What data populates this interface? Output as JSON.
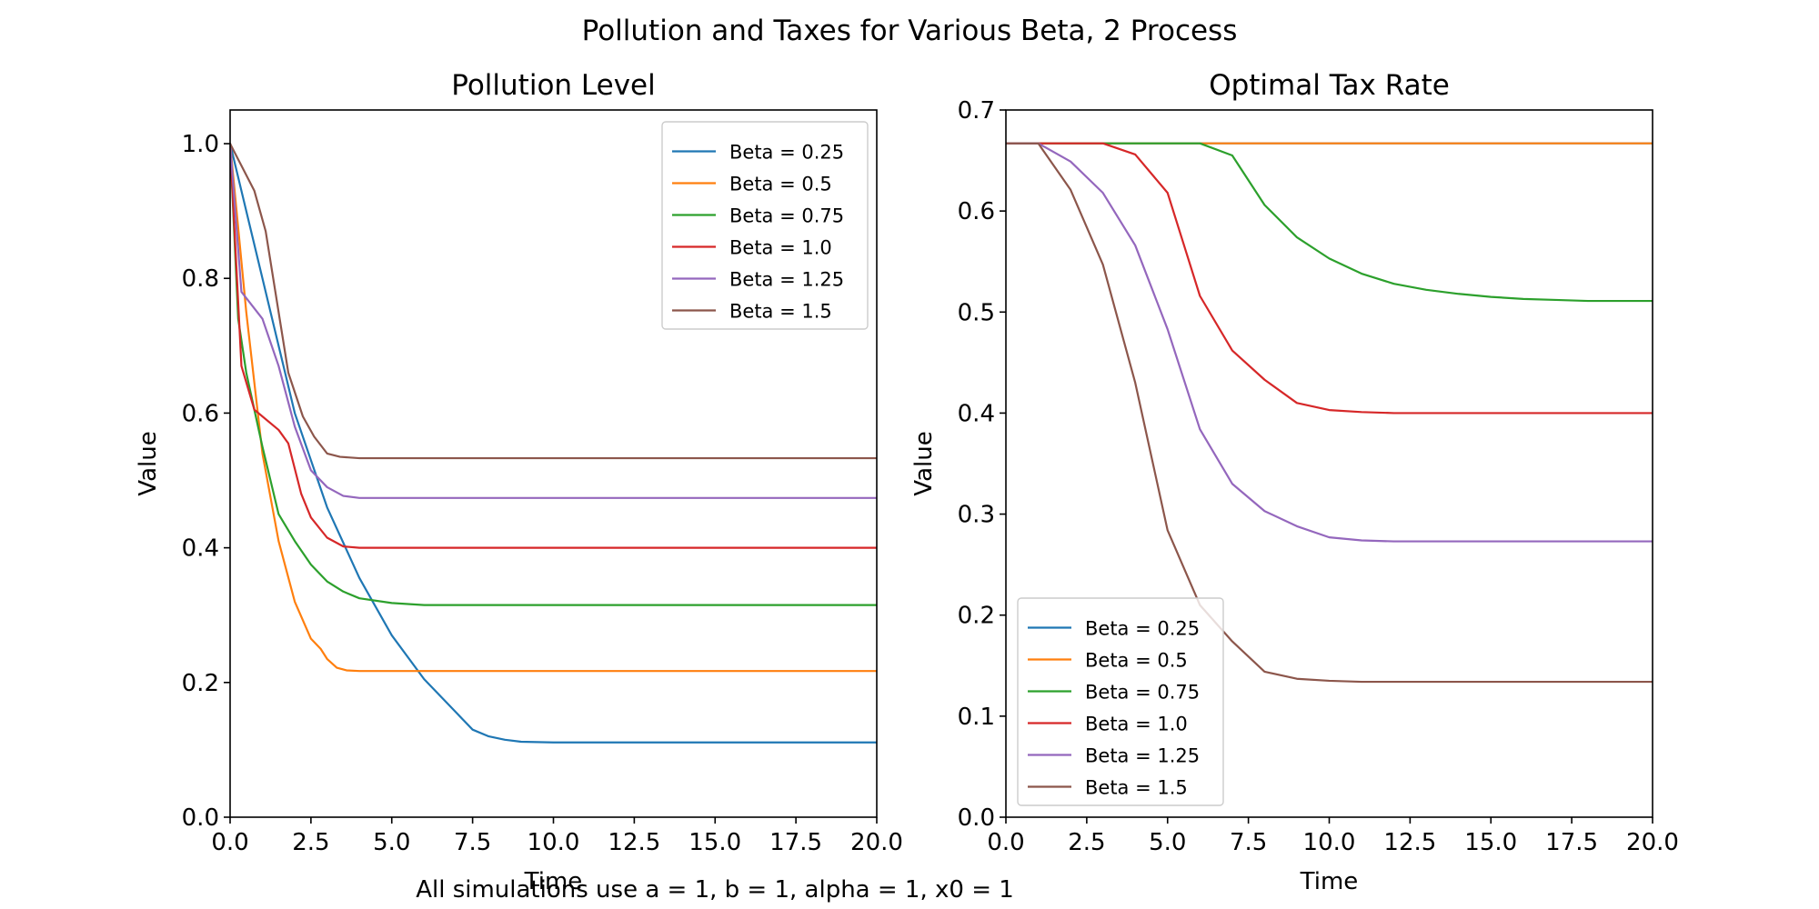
{
  "suptitle": "Pollution and Taxes for Various Beta, 2 Process",
  "footnote": "All simulations use a = 1, b = 1, alpha = 1, x0 = 1",
  "chart_data": [
    {
      "type": "line",
      "title": "Pollution Level",
      "xlabel": "Time",
      "ylabel": "Value",
      "xlim": [
        0,
        20
      ],
      "ylim": [
        0,
        1.05
      ],
      "xticks": [
        0,
        2.5,
        5,
        7.5,
        10,
        12.5,
        15,
        17.5,
        20
      ],
      "xtick_labels": [
        "0.0",
        "2.5",
        "5.0",
        "7.5",
        "10.0",
        "12.5",
        "15.0",
        "17.5",
        "20.0"
      ],
      "yticks": [
        0,
        0.2,
        0.4,
        0.6,
        0.8,
        1.0
      ],
      "ytick_labels": [
        "0.0",
        "0.2",
        "0.4",
        "0.6",
        "0.8",
        "1.0"
      ],
      "grid": false,
      "legend": "upper right",
      "series": [
        {
          "name": "Beta = 0.25",
          "color": "#1f77b4",
          "x": [
            0,
            1,
            2,
            3,
            4,
            5,
            6,
            7,
            7.5,
            8,
            8.5,
            9,
            10,
            12,
            15,
            20
          ],
          "y": [
            1.0,
            0.8,
            0.6,
            0.46,
            0.355,
            0.27,
            0.205,
            0.155,
            0.13,
            0.12,
            0.115,
            0.112,
            0.111,
            0.111,
            0.111,
            0.111
          ]
        },
        {
          "name": "Beta = 0.5",
          "color": "#ff7f0e",
          "x": [
            0,
            0.5,
            1,
            1.5,
            2,
            2.5,
            2.8,
            3,
            3.3,
            3.6,
            4,
            5,
            20
          ],
          "y": [
            1.0,
            0.75,
            0.54,
            0.41,
            0.32,
            0.265,
            0.25,
            0.235,
            0.222,
            0.218,
            0.217,
            0.217,
            0.217
          ]
        },
        {
          "name": "Beta = 0.75",
          "color": "#2ca02c",
          "x": [
            0,
            0.25,
            0.5,
            1,
            1.5,
            2,
            2.5,
            3,
            3.5,
            4,
            5,
            6,
            8,
            20
          ],
          "y": [
            1.0,
            0.74,
            0.66,
            0.55,
            0.45,
            0.41,
            0.375,
            0.35,
            0.335,
            0.325,
            0.318,
            0.315,
            0.315,
            0.315
          ]
        },
        {
          "name": "Beta = 1.0",
          "color": "#d62728",
          "x": [
            0,
            0.35,
            0.75,
            1.5,
            1.8,
            2.2,
            2.5,
            3,
            3.5,
            4,
            5,
            20
          ],
          "y": [
            1.0,
            0.67,
            0.605,
            0.575,
            0.555,
            0.48,
            0.445,
            0.415,
            0.402,
            0.4,
            0.4,
            0.4
          ]
        },
        {
          "name": "Beta = 1.25",
          "color": "#9467bd",
          "x": [
            0,
            0.35,
            1,
            1.5,
            2,
            2.5,
            3,
            3.5,
            4,
            5,
            20
          ],
          "y": [
            1.0,
            0.78,
            0.74,
            0.67,
            0.58,
            0.515,
            0.49,
            0.477,
            0.474,
            0.474,
            0.474
          ]
        },
        {
          "name": "Beta = 1.5",
          "color": "#8c564b",
          "x": [
            0,
            0.75,
            1.1,
            1.4,
            1.8,
            2.25,
            2.6,
            3,
            3.4,
            4,
            5,
            20
          ],
          "y": [
            1.0,
            0.93,
            0.87,
            0.78,
            0.66,
            0.595,
            0.565,
            0.54,
            0.535,
            0.533,
            0.533,
            0.533
          ]
        }
      ]
    },
    {
      "type": "line",
      "title": "Optimal Tax Rate",
      "xlabel": "Time",
      "ylabel": "Value",
      "xlim": [
        0,
        20
      ],
      "ylim": [
        0,
        0.7
      ],
      "xticks": [
        0,
        2.5,
        5,
        7.5,
        10,
        12.5,
        15,
        17.5,
        20
      ],
      "xtick_labels": [
        "0.0",
        "2.5",
        "5.0",
        "7.5",
        "10.0",
        "12.5",
        "15.0",
        "17.5",
        "20.0"
      ],
      "yticks": [
        0,
        0.1,
        0.2,
        0.3,
        0.4,
        0.5,
        0.6,
        0.7
      ],
      "ytick_labels": [
        "0.0",
        "0.1",
        "0.2",
        "0.3",
        "0.4",
        "0.5",
        "0.6",
        "0.7"
      ],
      "grid": false,
      "legend": "lower left",
      "series": [
        {
          "name": "Beta = 0.25",
          "color": "#1f77b4",
          "x": [
            0,
            20
          ],
          "y": [
            0.667,
            0.667
          ]
        },
        {
          "name": "Beta = 0.5",
          "color": "#ff7f0e",
          "x": [
            0,
            20
          ],
          "y": [
            0.667,
            0.667
          ]
        },
        {
          "name": "Beta = 0.75",
          "color": "#2ca02c",
          "x": [
            0,
            1,
            2,
            3,
            4,
            5,
            6,
            7,
            8,
            9,
            10,
            11,
            12,
            13,
            14,
            15,
            16,
            17,
            18,
            19,
            20
          ],
          "y": [
            0.667,
            0.667,
            0.667,
            0.667,
            0.667,
            0.667,
            0.667,
            0.655,
            0.606,
            0.574,
            0.553,
            0.538,
            0.528,
            0.522,
            0.518,
            0.515,
            0.513,
            0.512,
            0.511,
            0.511,
            0.511
          ]
        },
        {
          "name": "Beta = 1.0",
          "color": "#d62728",
          "x": [
            0,
            1,
            2,
            3,
            4,
            5,
            6,
            7,
            8,
            9,
            10,
            11,
            12,
            13,
            14,
            15,
            16,
            17,
            18,
            19,
            20
          ],
          "y": [
            0.667,
            0.667,
            0.667,
            0.667,
            0.656,
            0.618,
            0.516,
            0.462,
            0.433,
            0.41,
            0.403,
            0.401,
            0.4,
            0.4,
            0.4,
            0.4,
            0.4,
            0.4,
            0.4,
            0.4,
            0.4
          ]
        },
        {
          "name": "Beta = 1.25",
          "color": "#9467bd",
          "x": [
            0,
            1,
            2,
            3,
            4,
            5,
            6,
            7,
            8,
            9,
            10,
            11,
            12,
            13,
            14,
            15,
            16,
            17,
            18,
            19,
            20
          ],
          "y": [
            0.667,
            0.667,
            0.649,
            0.618,
            0.566,
            0.483,
            0.384,
            0.33,
            0.303,
            0.288,
            0.277,
            0.274,
            0.273,
            0.273,
            0.273,
            0.273,
            0.273,
            0.273,
            0.273,
            0.273,
            0.273
          ]
        },
        {
          "name": "Beta = 1.5",
          "color": "#8c564b",
          "x": [
            0,
            1,
            2,
            3,
            4,
            5,
            6,
            7,
            8,
            9,
            10,
            11,
            12,
            13,
            14,
            15,
            16,
            17,
            18,
            19,
            20
          ],
          "y": [
            0.667,
            0.667,
            0.621,
            0.547,
            0.43,
            0.284,
            0.21,
            0.174,
            0.144,
            0.137,
            0.135,
            0.134,
            0.134,
            0.134,
            0.134,
            0.134,
            0.134,
            0.134,
            0.134,
            0.134,
            0.134
          ]
        }
      ]
    }
  ]
}
